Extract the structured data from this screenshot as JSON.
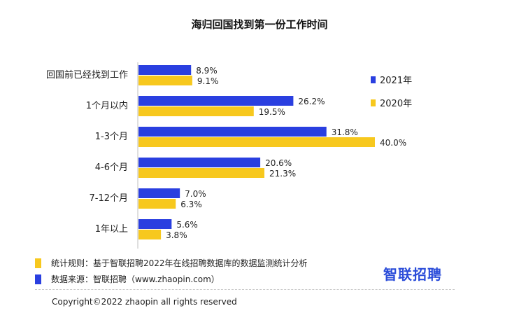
{
  "colors": {
    "series_2021": "#2a3fe0",
    "series_2020": "#f7c81e",
    "text": "#222222"
  },
  "chart_data": {
    "type": "bar",
    "orientation": "horizontal",
    "title": "海归回国找到第一份工作时间",
    "categories": [
      "回国前已经找到工作",
      "1个月以内",
      "1-3个月",
      "4-6个月",
      "7-12个月",
      "1年以上"
    ],
    "series": [
      {
        "name": "2021年",
        "values": [
          8.9,
          26.2,
          31.8,
          20.6,
          7.0,
          5.6
        ],
        "labels": [
          "8.9%",
          "26.2%",
          "31.8%",
          "20.6%",
          "7.0%",
          "5.6%"
        ]
      },
      {
        "name": "2020年",
        "values": [
          9.1,
          19.5,
          40.0,
          21.3,
          6.3,
          3.8
        ],
        "labels": [
          "9.1%",
          "19.5%",
          "40.0%",
          "21.3%",
          "6.3%",
          "3.8%"
        ]
      }
    ],
    "xlim": [
      0,
      40
    ],
    "value_unit": "%",
    "grid": false,
    "legend_position": "top-right"
  },
  "notes": {
    "rule": "统计规则：基于智联招聘2022年在线招聘数据库的数据监测统计分析",
    "source": "数据来源：智联招聘（www.zhaopin.com）"
  },
  "logo": "智联招聘",
  "copyright": "Copyright©2022 zhaopin all rights reserved"
}
